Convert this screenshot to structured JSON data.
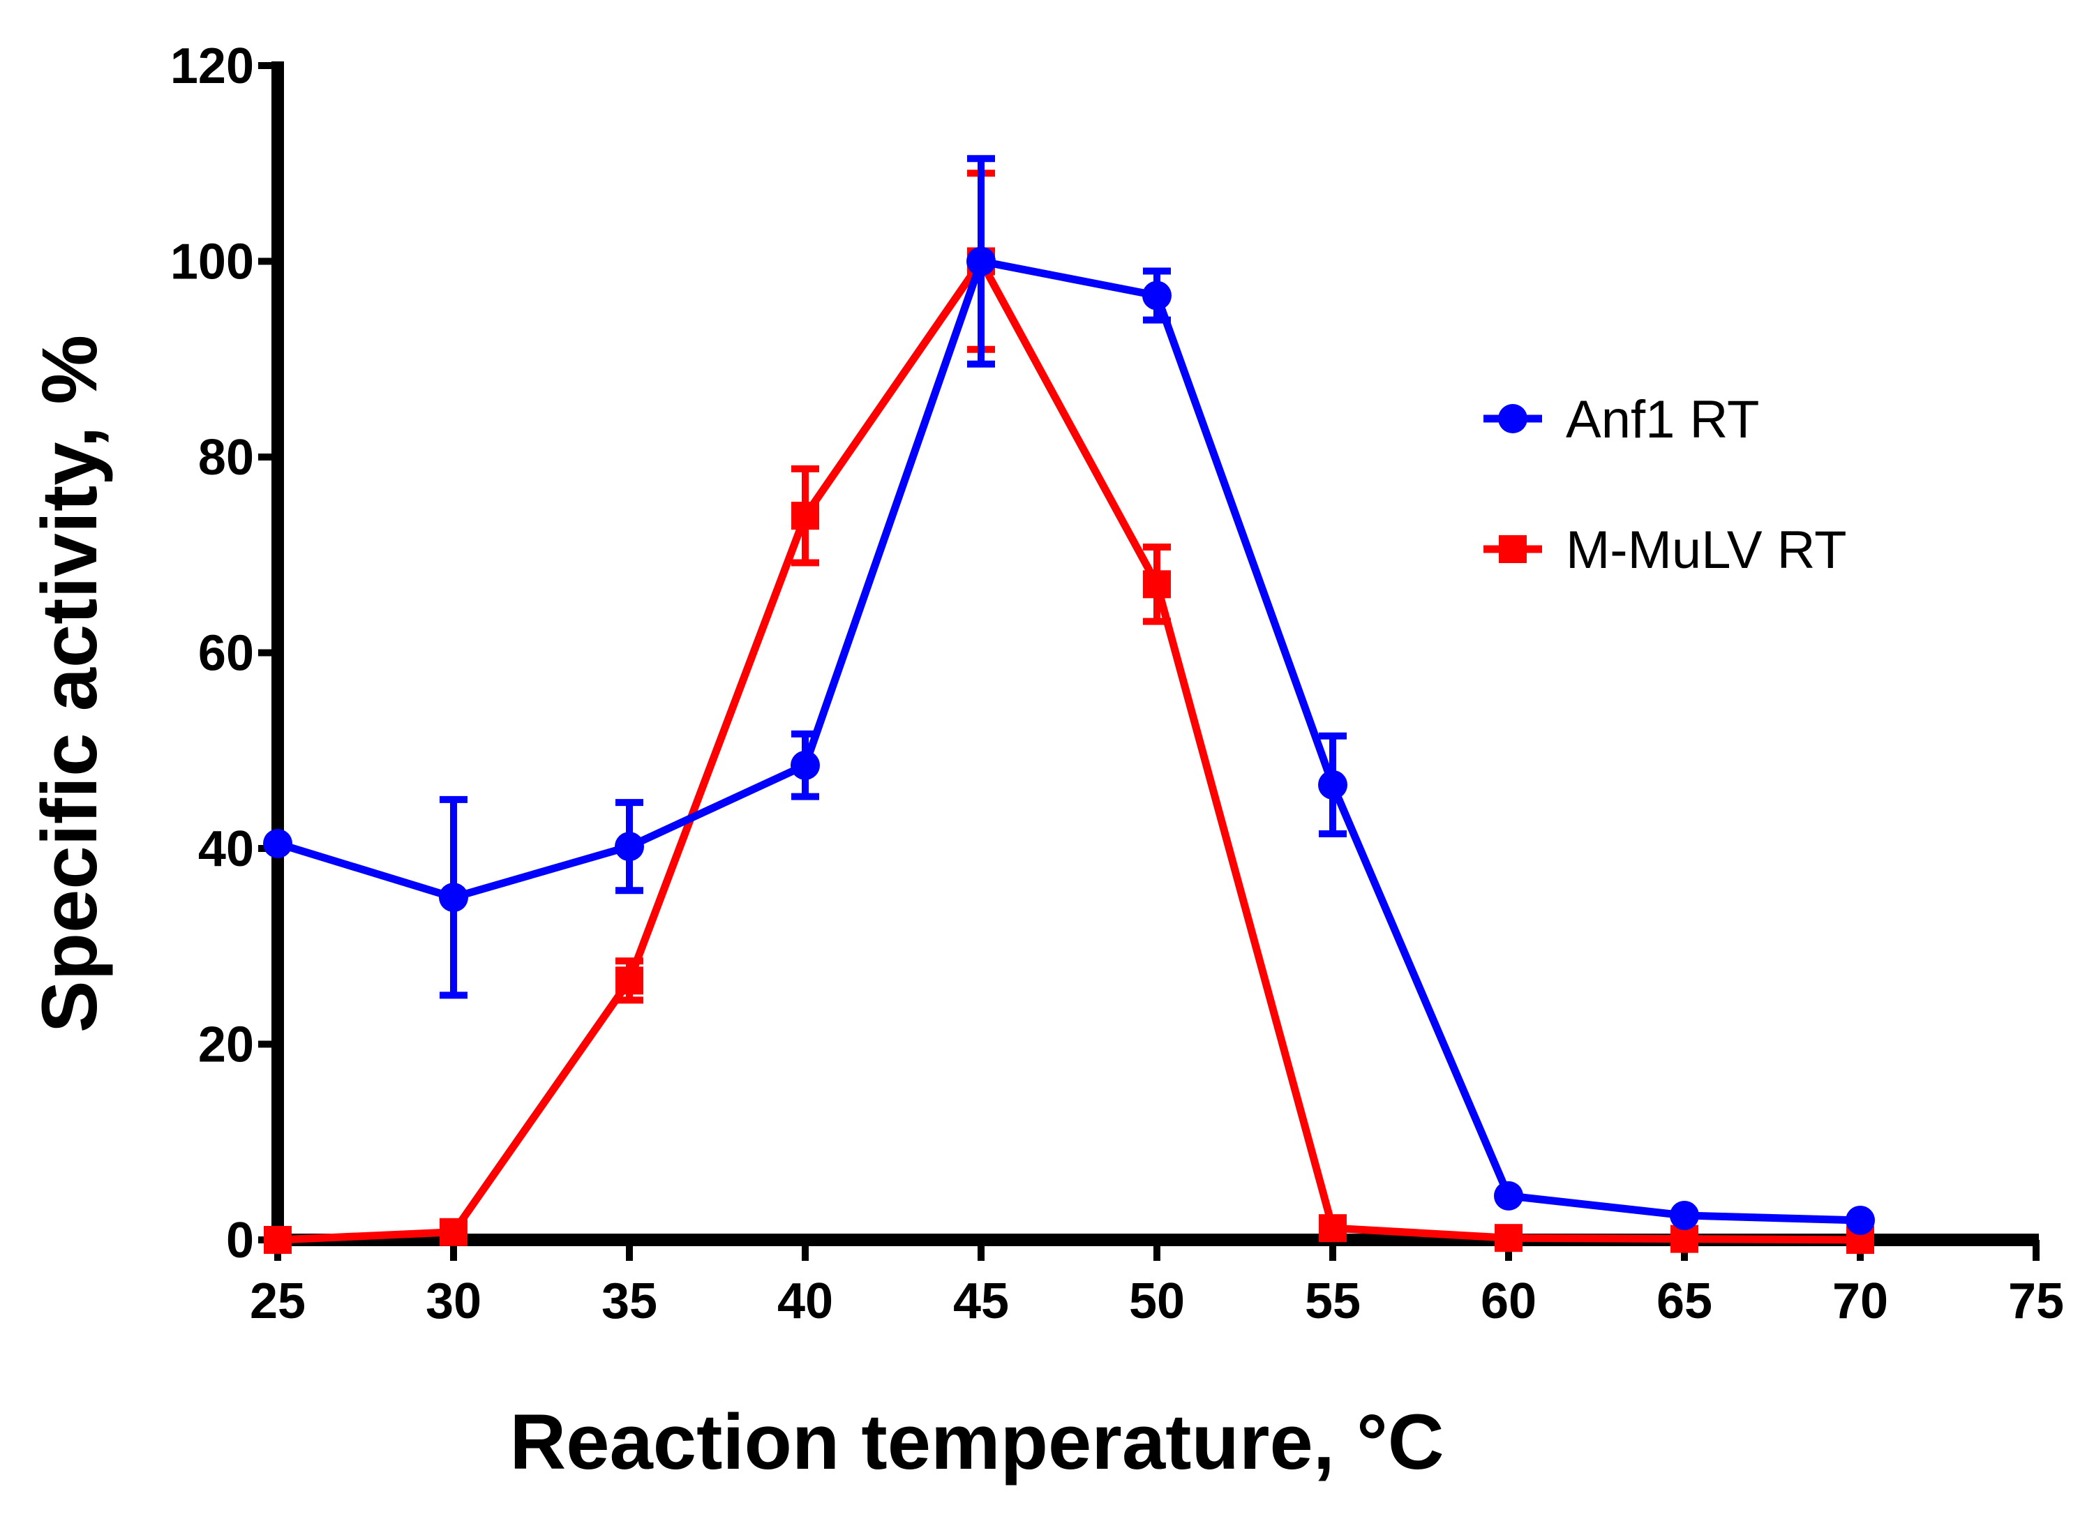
{
  "chart_data": {
    "type": "line",
    "title": "",
    "xlabel": "Reaction temperature, °C",
    "ylabel": "Specific activity, %",
    "xlim": [
      25,
      75
    ],
    "ylim": [
      0,
      120
    ],
    "xticks": [
      25,
      30,
      35,
      40,
      45,
      50,
      55,
      60,
      65,
      70,
      75
    ],
    "yticks": [
      0,
      20,
      40,
      60,
      80,
      100,
      120
    ],
    "xtick_labels": [
      "25",
      "30",
      "35",
      "40",
      "45",
      "50",
      "55",
      "60",
      "65",
      "70",
      "75"
    ],
    "ytick_labels": [
      "0",
      "20",
      "40",
      "60",
      "80",
      "100",
      "120"
    ],
    "grid": false,
    "legend_position": "right",
    "series": [
      {
        "name": "Anf1 RT",
        "color": "#0000ff",
        "marker": "circle",
        "x": [
          25,
          30,
          35,
          40,
          45,
          50,
          55,
          60,
          65,
          70
        ],
        "y": [
          40.5,
          35,
          40.2,
          48.5,
          100,
          96.5,
          46.5,
          4.5,
          2.5,
          2
        ],
        "err": [
          0,
          10,
          4.5,
          3.2,
          10.5,
          2.5,
          5,
          0,
          0,
          0
        ]
      },
      {
        "name": "M-MuLV RT",
        "color": "#ff0000",
        "marker": "square",
        "x": [
          25,
          30,
          35,
          40,
          45,
          50,
          55,
          60,
          65,
          70
        ],
        "y": [
          0,
          0.8,
          26.5,
          74,
          100,
          67,
          1.2,
          0.2,
          0.1,
          0
        ],
        "err": [
          0,
          0,
          2,
          4.8,
          9,
          3.8,
          0,
          0,
          0,
          0
        ]
      }
    ]
  }
}
